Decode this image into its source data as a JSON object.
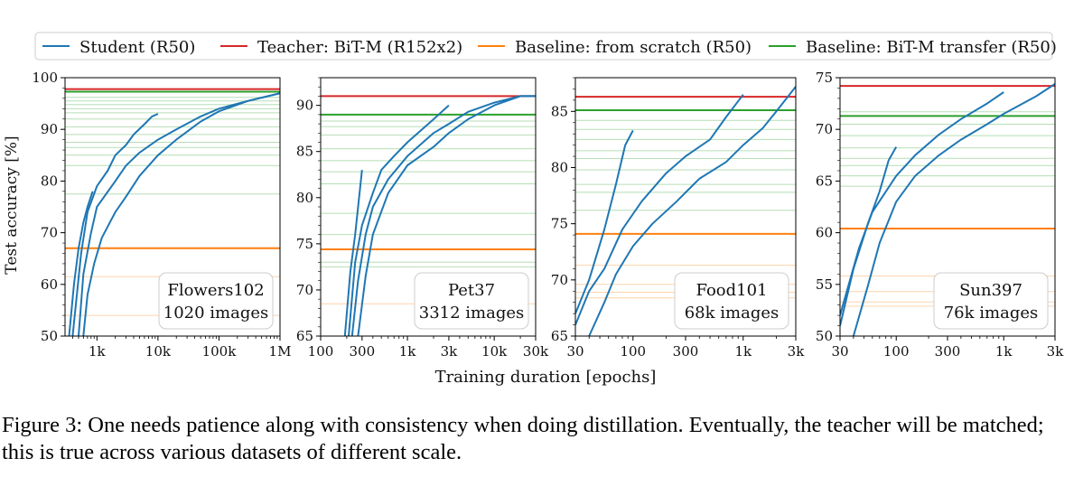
{
  "figure": {
    "caption": "Figure 3: One needs patience along with consistency when doing distillation. Eventually, the teacher will be matched; this is true across various datasets of different scale.",
    "xlabel": "Training duration [epochs]",
    "ylabel": "Test accuracy [%]"
  },
  "colors": {
    "student": "#1f77b4",
    "teacher": "#d62728",
    "scratch": "#ff7f0e",
    "transfer": "#2ca02c"
  },
  "legend": [
    {
      "label": "Student (R50)",
      "color": "#1f77b4"
    },
    {
      "label": "Teacher: BiT-M (R152x2)",
      "color": "#d62728"
    },
    {
      "label": "Baseline: from scratch (R50)",
      "color": "#ff7f0e"
    },
    {
      "label": "Baseline: BiT-M transfer (R50)",
      "color": "#2ca02c"
    }
  ],
  "chart_data": [
    {
      "type": "line",
      "dataset": "Flowers102",
      "images": "1020 images",
      "xscale": "log",
      "xlim": [
        300,
        1000000
      ],
      "ylim": [
        50,
        100
      ],
      "xticks": [
        {
          "v": 1000,
          "label": "1k"
        },
        {
          "v": 10000,
          "label": "10k"
        },
        {
          "v": 100000,
          "label": "100k"
        },
        {
          "v": 1000000,
          "label": "1M"
        }
      ],
      "yticks": [
        {
          "v": 50,
          "label": "50"
        },
        {
          "v": 60,
          "label": "60"
        },
        {
          "v": 70,
          "label": "70"
        },
        {
          "v": 80,
          "label": "80"
        },
        {
          "v": 90,
          "label": "90"
        },
        {
          "v": 100,
          "label": "100"
        }
      ],
      "teacher": 97.8,
      "scratch": 67,
      "transfer": 97.3,
      "scratch_faint": [
        61.5,
        54
      ],
      "transfer_faint": [
        96.2,
        95.5,
        94.8,
        94.0,
        93.2,
        92.0,
        90.5,
        89.0,
        87.5,
        86.5,
        85.0,
        83.0,
        77.5
      ],
      "series": [
        {
          "name": "run1",
          "x": [
            350,
            420,
            500,
            600,
            700,
            850
          ],
          "y": [
            50,
            60,
            67,
            72,
            75,
            78
          ]
        },
        {
          "name": "run2",
          "x": [
            400,
            550,
            700,
            1000,
            1500,
            2000,
            3000,
            4000,
            6000,
            8000,
            10000
          ],
          "y": [
            50,
            66,
            74,
            79,
            82,
            85,
            87,
            89,
            91,
            92.5,
            93
          ]
        },
        {
          "name": "run3",
          "x": [
            500,
            600,
            800,
            1000,
            2000,
            3000,
            5000,
            10000,
            20000,
            50000,
            100000,
            300000,
            1000000
          ],
          "y": [
            50,
            62,
            70,
            75,
            80,
            83,
            85.5,
            88,
            90,
            92.5,
            94,
            95.5,
            97
          ]
        },
        {
          "name": "run4",
          "x": [
            600,
            700,
            900,
            1200,
            2000,
            3000,
            5000,
            10000,
            20000,
            50000,
            100000,
            300000,
            1000000
          ],
          "y": [
            50,
            58,
            64,
            69,
            74,
            77,
            81,
            85,
            88,
            91.5,
            93.5,
            95.5,
            97
          ]
        }
      ]
    },
    {
      "type": "line",
      "dataset": "Pet37",
      "images": "3312 images",
      "xscale": "log",
      "xlim": [
        100,
        30000
      ],
      "ylim": [
        65,
        93
      ],
      "xticks": [
        {
          "v": 100,
          "label": "100"
        },
        {
          "v": 300,
          "label": "300"
        },
        {
          "v": 1000,
          "label": "1k"
        },
        {
          "v": 3000,
          "label": "3k"
        },
        {
          "v": 10000,
          "label": "10k"
        },
        {
          "v": 30000,
          "label": "30k"
        }
      ],
      "yticks": [
        {
          "v": 65,
          "label": "65"
        },
        {
          "v": 70,
          "label": "70"
        },
        {
          "v": 75,
          "label": "75"
        },
        {
          "v": 80,
          "label": "80"
        },
        {
          "v": 85,
          "label": "85"
        },
        {
          "v": 90,
          "label": "90"
        }
      ],
      "teacher": 91,
      "scratch": 74.4,
      "transfer": 89,
      "scratch_faint": [
        68.5
      ],
      "transfer_faint": [
        88.3,
        87.7,
        86.8,
        85.3,
        84.0,
        82.8,
        81.5,
        78.3,
        76.0,
        73.0,
        72.5
      ],
      "series": [
        {
          "name": "run1",
          "x": [
            190,
            220,
            250,
            300
          ],
          "y": [
            65,
            72,
            76,
            83
          ]
        },
        {
          "name": "run2",
          "x": [
            210,
            250,
            300,
            400,
            500,
            700,
            1000,
            2000,
            3000
          ],
          "y": [
            65,
            73,
            77,
            80.5,
            83,
            84.5,
            86,
            88.5,
            90
          ]
        },
        {
          "name": "run3",
          "x": [
            230,
            270,
            330,
            400,
            600,
            1000,
            2000,
            3000,
            5000,
            10000,
            20000,
            30000
          ],
          "y": [
            65,
            71,
            76,
            79,
            82,
            84.5,
            87,
            88,
            89.3,
            90.3,
            91,
            91
          ]
        },
        {
          "name": "run4",
          "x": [
            270,
            330,
            400,
            600,
            1000,
            2000,
            3000,
            5000,
            10000,
            20000,
            30000
          ],
          "y": [
            65,
            71.5,
            76,
            80.5,
            83.5,
            85.5,
            87,
            88.5,
            90,
            91,
            91
          ]
        }
      ]
    },
    {
      "type": "line",
      "dataset": "Food101",
      "images": "68k images",
      "xscale": "log",
      "xlim": [
        30,
        3000
      ],
      "ylim": [
        65,
        88
      ],
      "xticks": [
        {
          "v": 30,
          "label": "30"
        },
        {
          "v": 100,
          "label": "100"
        },
        {
          "v": 300,
          "label": "300"
        },
        {
          "v": 1000,
          "label": "1k"
        },
        {
          "v": 3000,
          "label": "3k"
        }
      ],
      "yticks": [
        {
          "v": 65,
          "label": "65"
        },
        {
          "v": 70,
          "label": "70"
        },
        {
          "v": 75,
          "label": "75"
        },
        {
          "v": 80,
          "label": "80"
        },
        {
          "v": 85,
          "label": "85"
        }
      ],
      "teacher": 86.3,
      "scratch": 74.1,
      "transfer": 85.1,
      "scratch_faint": [
        71.3,
        69.6,
        68.9,
        68.4
      ],
      "transfer_faint": [
        84.2,
        83.4,
        82.5,
        81.5,
        80.8,
        79.8,
        78.5,
        77.8,
        76.2
      ],
      "series": [
        {
          "name": "run1",
          "x": [
            30,
            40,
            55,
            70,
            85,
            100
          ],
          "y": [
            67,
            70,
            74.5,
            78.5,
            82,
            83.3
          ]
        },
        {
          "name": "run2",
          "x": [
            30,
            40,
            55,
            80,
            120,
            200,
            300,
            500,
            700,
            1000
          ],
          "y": [
            66,
            69,
            71,
            74.5,
            77,
            79.5,
            81,
            82.5,
            84.5,
            86.5
          ]
        },
        {
          "name": "run3",
          "x": [
            40,
            55,
            70,
            100,
            150,
            250,
            400,
            700,
            1000,
            1500,
            2000,
            3000
          ],
          "y": [
            65,
            68,
            70.5,
            73,
            75,
            77,
            79,
            80.5,
            82,
            83.5,
            85,
            87.2
          ]
        }
      ]
    },
    {
      "type": "line",
      "dataset": "Sun397",
      "images": "76k images",
      "xscale": "log",
      "xlim": [
        30,
        3000
      ],
      "ylim": [
        50,
        75
      ],
      "xticks": [
        {
          "v": 30,
          "label": "30"
        },
        {
          "v": 100,
          "label": "100"
        },
        {
          "v": 300,
          "label": "300"
        },
        {
          "v": 1000,
          "label": "1k"
        },
        {
          "v": 3000,
          "label": "3k"
        }
      ],
      "yticks": [
        {
          "v": 50,
          "label": "50"
        },
        {
          "v": 55,
          "label": "55"
        },
        {
          "v": 60,
          "label": "60"
        },
        {
          "v": 65,
          "label": "65"
        },
        {
          "v": 70,
          "label": "70"
        },
        {
          "v": 75,
          "label": "75"
        }
      ],
      "teacher": 74.2,
      "scratch": 60.4,
      "transfer": 71.3,
      "scratch_faint": [
        55.8,
        54.3,
        53.3,
        52.9
      ],
      "transfer_faint": [
        71.7,
        70.5,
        69.4,
        68.2,
        67.2,
        66.5,
        65.5,
        64.5
      ],
      "series": [
        {
          "name": "run1",
          "x": [
            30,
            40,
            55,
            70,
            85,
            100
          ],
          "y": [
            51,
            56.5,
            61,
            64,
            67,
            68.3
          ]
        },
        {
          "name": "run2",
          "x": [
            30,
            45,
            60,
            100,
            150,
            250,
            400,
            700,
            1000
          ],
          "y": [
            52,
            58.5,
            62,
            65.5,
            67.5,
            69.5,
            71,
            72.5,
            73.6
          ]
        },
        {
          "name": "run3",
          "x": [
            40,
            55,
            70,
            100,
            150,
            250,
            400,
            700,
            1000,
            1500,
            2000,
            3000
          ],
          "y": [
            50,
            55,
            59,
            63,
            65.5,
            67.5,
            69,
            70.5,
            71.5,
            72.5,
            73.2,
            74.4
          ]
        }
      ]
    }
  ]
}
